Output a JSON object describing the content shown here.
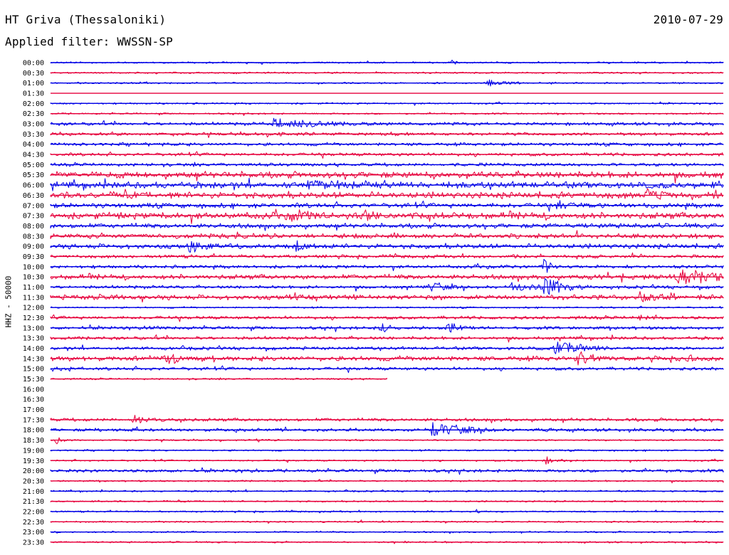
{
  "header": {
    "station": "HT Griva (Thessaloniki)",
    "filter": "Applied filter: WWSSN-SP",
    "date": "2010-07-29"
  },
  "colors": {
    "even_trace": "#0000e6",
    "odd_trace": "#e6003c",
    "text": "#000000",
    "background": "#ffffff"
  },
  "chart_data": {
    "type": "helicorder",
    "ylabel": "HHZ - 50000",
    "row_minutes": 30,
    "row_labels": [
      "00:00",
      "00:30",
      "01:00",
      "01:30",
      "02:00",
      "02:30",
      "03:00",
      "03:30",
      "04:00",
      "04:30",
      "05:00",
      "05:30",
      "06:00",
      "06:30",
      "07:00",
      "07:30",
      "08:00",
      "08:30",
      "09:00",
      "09:30",
      "10:00",
      "10:30",
      "11:00",
      "11:30",
      "12:00",
      "12:30",
      "13:00",
      "13:30",
      "14:00",
      "14:30",
      "15:00",
      "15:30",
      "16:00",
      "16:30",
      "17:00",
      "17:30",
      "18:00",
      "18:30",
      "19:00",
      "19:30",
      "20:00",
      "20:30",
      "21:00",
      "21:30",
      "22:00",
      "22:30",
      "23:00",
      "23:30"
    ],
    "noise_level": [
      1,
      1,
      1,
      0,
      1,
      1,
      2,
      2,
      2,
      2,
      2,
      4,
      4,
      4,
      3,
      4,
      3,
      3,
      3,
      2,
      2,
      3,
      2,
      3,
      1,
      2,
      2,
      2,
      2,
      3,
      2,
      1,
      0,
      0,
      0,
      2,
      2,
      1,
      1,
      1,
      2,
      1,
      1,
      1,
      1,
      1,
      1,
      1
    ],
    "data_gap_rows": [
      {
        "row": "15:30",
        "recorded_until_minute": 15.0
      },
      {
        "row": "16:00",
        "recorded_until_minute": 0
      },
      {
        "row": "16:30",
        "recorded_until_minute": 0
      },
      {
        "row": "17:00",
        "recorded_until_minute": 0
      }
    ],
    "events": [
      {
        "row": "00:00",
        "minute": 17.9,
        "amp": 7,
        "dur": 0.2
      },
      {
        "row": "01:00",
        "minute": 19.5,
        "amp": 6,
        "dur": 1.2
      },
      {
        "row": "03:00",
        "minute": 9.9,
        "amp": 9,
        "dur": 3.5
      },
      {
        "row": "03:30",
        "minute": 10.2,
        "amp": 5,
        "dur": 0.5
      },
      {
        "row": "05:30",
        "minute": 2.0,
        "amp": 6,
        "dur": 1.0
      },
      {
        "row": "05:30",
        "minute": 16.0,
        "amp": 5,
        "dur": 1.0
      },
      {
        "row": "06:00",
        "minute": 11.5,
        "amp": 12,
        "dur": 2.5
      },
      {
        "row": "06:30",
        "minute": 26.5,
        "amp": 11,
        "dur": 1.3
      },
      {
        "row": "07:00",
        "minute": 22.5,
        "amp": 10,
        "dur": 1.8
      },
      {
        "row": "07:30",
        "minute": 10.5,
        "amp": 13,
        "dur": 2.0
      },
      {
        "row": "07:30",
        "minute": 14.0,
        "amp": 11,
        "dur": 1.0
      },
      {
        "row": "08:30",
        "minute": 5.5,
        "amp": 5,
        "dur": 0.6
      },
      {
        "row": "09:00",
        "minute": 6.2,
        "amp": 12,
        "dur": 1.5
      },
      {
        "row": "09:00",
        "minute": 11.0,
        "amp": 9,
        "dur": 0.6
      },
      {
        "row": "09:30",
        "minute": 20.5,
        "amp": 4,
        "dur": 1.0
      },
      {
        "row": "10:00",
        "minute": 19.5,
        "amp": 7,
        "dur": 0.3
      },
      {
        "row": "10:00",
        "minute": 22.0,
        "amp": 14,
        "dur": 0.4
      },
      {
        "row": "10:30",
        "minute": 28.0,
        "amp": 15,
        "dur": 2.5
      },
      {
        "row": "10:30",
        "minute": 24.0,
        "amp": 6,
        "dur": 2.0
      },
      {
        "row": "11:00",
        "minute": 17.0,
        "amp": 9,
        "dur": 1.0
      },
      {
        "row": "11:00",
        "minute": 20.5,
        "amp": 9,
        "dur": 1.6
      },
      {
        "row": "11:00",
        "minute": 22.0,
        "amp": 16,
        "dur": 1.2
      },
      {
        "row": "11:30",
        "minute": 2.0,
        "amp": 7,
        "dur": 0.8
      },
      {
        "row": "11:30",
        "minute": 26.3,
        "amp": 12,
        "dur": 1.2
      },
      {
        "row": "12:30",
        "minute": 26.3,
        "amp": 6,
        "dur": 0.8
      },
      {
        "row": "13:00",
        "minute": 14.7,
        "amp": 10,
        "dur": 0.7
      },
      {
        "row": "13:00",
        "minute": 17.7,
        "amp": 10,
        "dur": 1.0
      },
      {
        "row": "13:00",
        "minute": 4.5,
        "amp": 5,
        "dur": 0.5
      },
      {
        "row": "14:00",
        "minute": 22.5,
        "amp": 12,
        "dur": 1.8
      },
      {
        "row": "14:30",
        "minute": 5.1,
        "amp": 12,
        "dur": 1.3
      },
      {
        "row": "14:30",
        "minute": 23.5,
        "amp": 14,
        "dur": 1.0
      },
      {
        "row": "14:30",
        "minute": 28.4,
        "amp": 10,
        "dur": 0.4
      },
      {
        "row": "15:00",
        "minute": 0.3,
        "amp": 5,
        "dur": 0.6
      },
      {
        "row": "17:30",
        "minute": 3.7,
        "amp": 9,
        "dur": 0.8
      },
      {
        "row": "18:00",
        "minute": 17.0,
        "amp": 14,
        "dur": 1.8
      },
      {
        "row": "18:00",
        "minute": 2.0,
        "amp": 5,
        "dur": 0.5
      },
      {
        "row": "18:30",
        "minute": 0.2,
        "amp": 8,
        "dur": 0.3
      },
      {
        "row": "19:30",
        "minute": 22.0,
        "amp": 8,
        "dur": 0.6
      },
      {
        "row": "22:00",
        "minute": 19.0,
        "amp": 6,
        "dur": 0.2
      }
    ]
  }
}
